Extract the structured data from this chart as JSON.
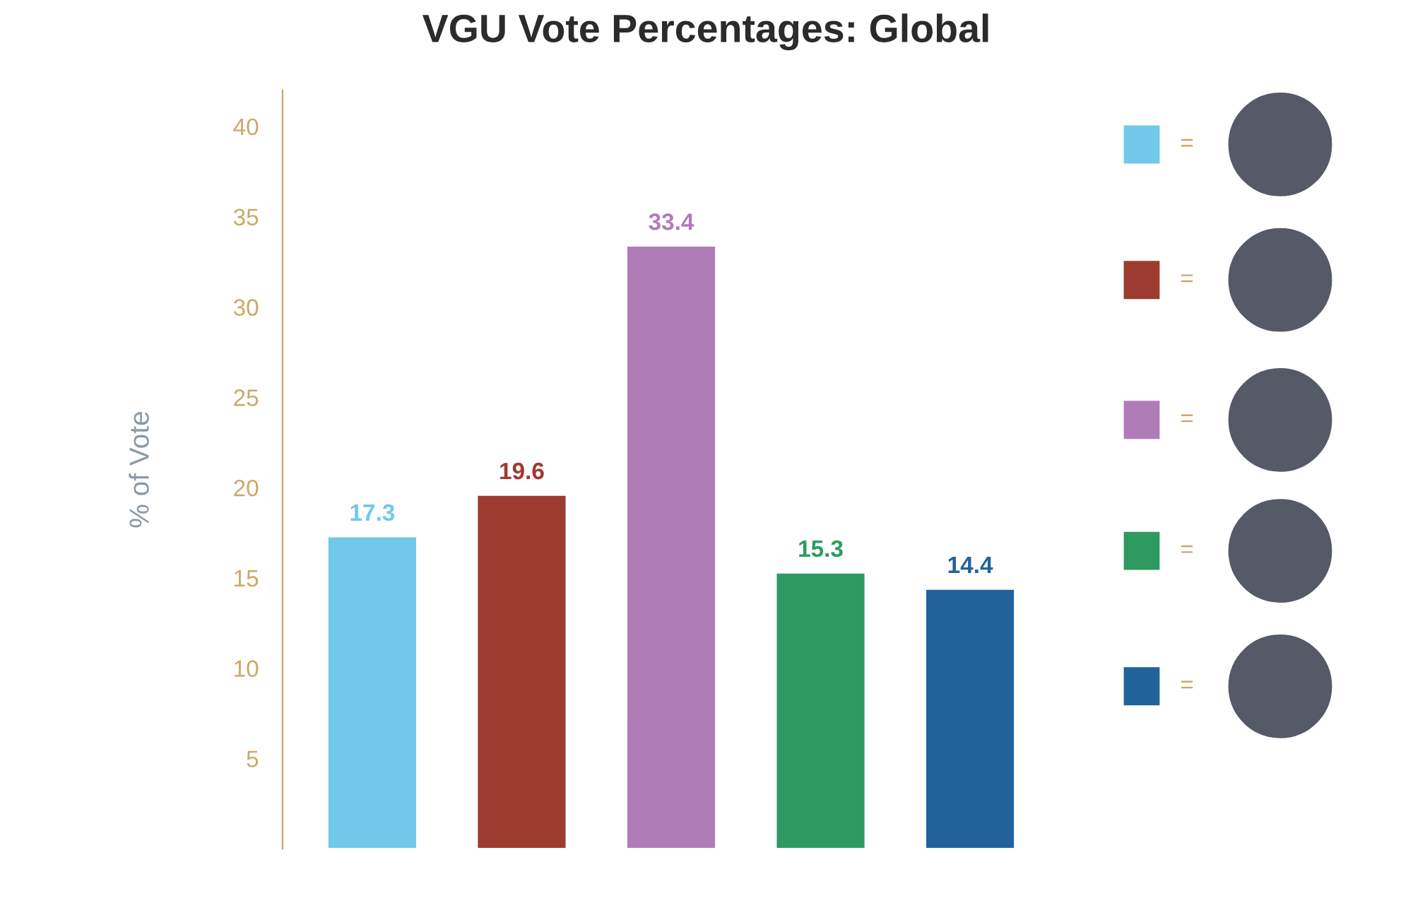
{
  "chart_data": {
    "type": "bar",
    "title": "VGU Vote Percentages: Global",
    "ylabel": "% of Vote",
    "categories": [
      null,
      null,
      null,
      null,
      null
    ],
    "values": [
      17.3,
      19.6,
      33.4,
      15.3,
      14.4
    ],
    "colors": [
      "#70c9e8",
      "#9c3b30",
      "#b07cb8",
      "#2f9a60",
      "#22639b"
    ],
    "data_labels": true,
    "ylim": [
      0,
      42
    ],
    "yticks": [
      5,
      10,
      15,
      20,
      25,
      30,
      35,
      40
    ],
    "grid": false,
    "legend": false,
    "annotations": [
      "=",
      "=",
      "=",
      "=",
      "="
    ]
  }
}
